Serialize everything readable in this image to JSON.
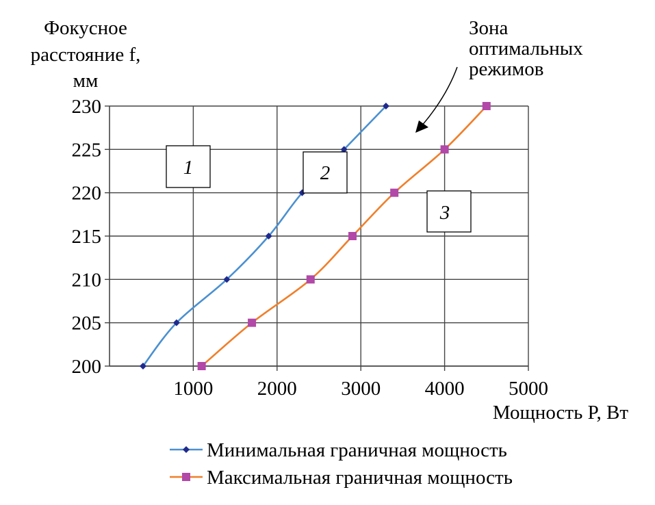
{
  "chart_data": {
    "type": "line",
    "ylabel_lines": [
      "Фокусное",
      "расстояние f,",
      "мм"
    ],
    "xlabel": "Мощность P, Вт",
    "xlim": [
      0,
      5000
    ],
    "ylim": [
      200,
      230
    ],
    "x_ticks": [
      1000,
      2000,
      3000,
      4000,
      5000
    ],
    "y_ticks": [
      200,
      205,
      210,
      215,
      220,
      225,
      230
    ],
    "grid": true,
    "legend_position": "bottom",
    "series": [
      {
        "name": "Минимальная граничная мощность",
        "color": "#4a90d0",
        "marker_color": "#1f2a8c",
        "marker": "diamond",
        "x": [
          400,
          800,
          1400,
          1900,
          2300,
          2800,
          3300
        ],
        "y": [
          200,
          205,
          210,
          215,
          220,
          225,
          230
        ]
      },
      {
        "name": "Максимальная граничная мощность",
        "color": "#f07f2a",
        "marker_color": "#b248a8",
        "marker": "square",
        "x": [
          1100,
          1700,
          2400,
          2900,
          3400,
          4000,
          4500
        ],
        "y": [
          200,
          205,
          210,
          215,
          220,
          225,
          230
        ]
      }
    ],
    "annotations": {
      "zone_text_lines": [
        "Зона",
        "оптимальных",
        "режимов"
      ],
      "zone_labels": [
        "1",
        "2",
        "3"
      ]
    }
  }
}
